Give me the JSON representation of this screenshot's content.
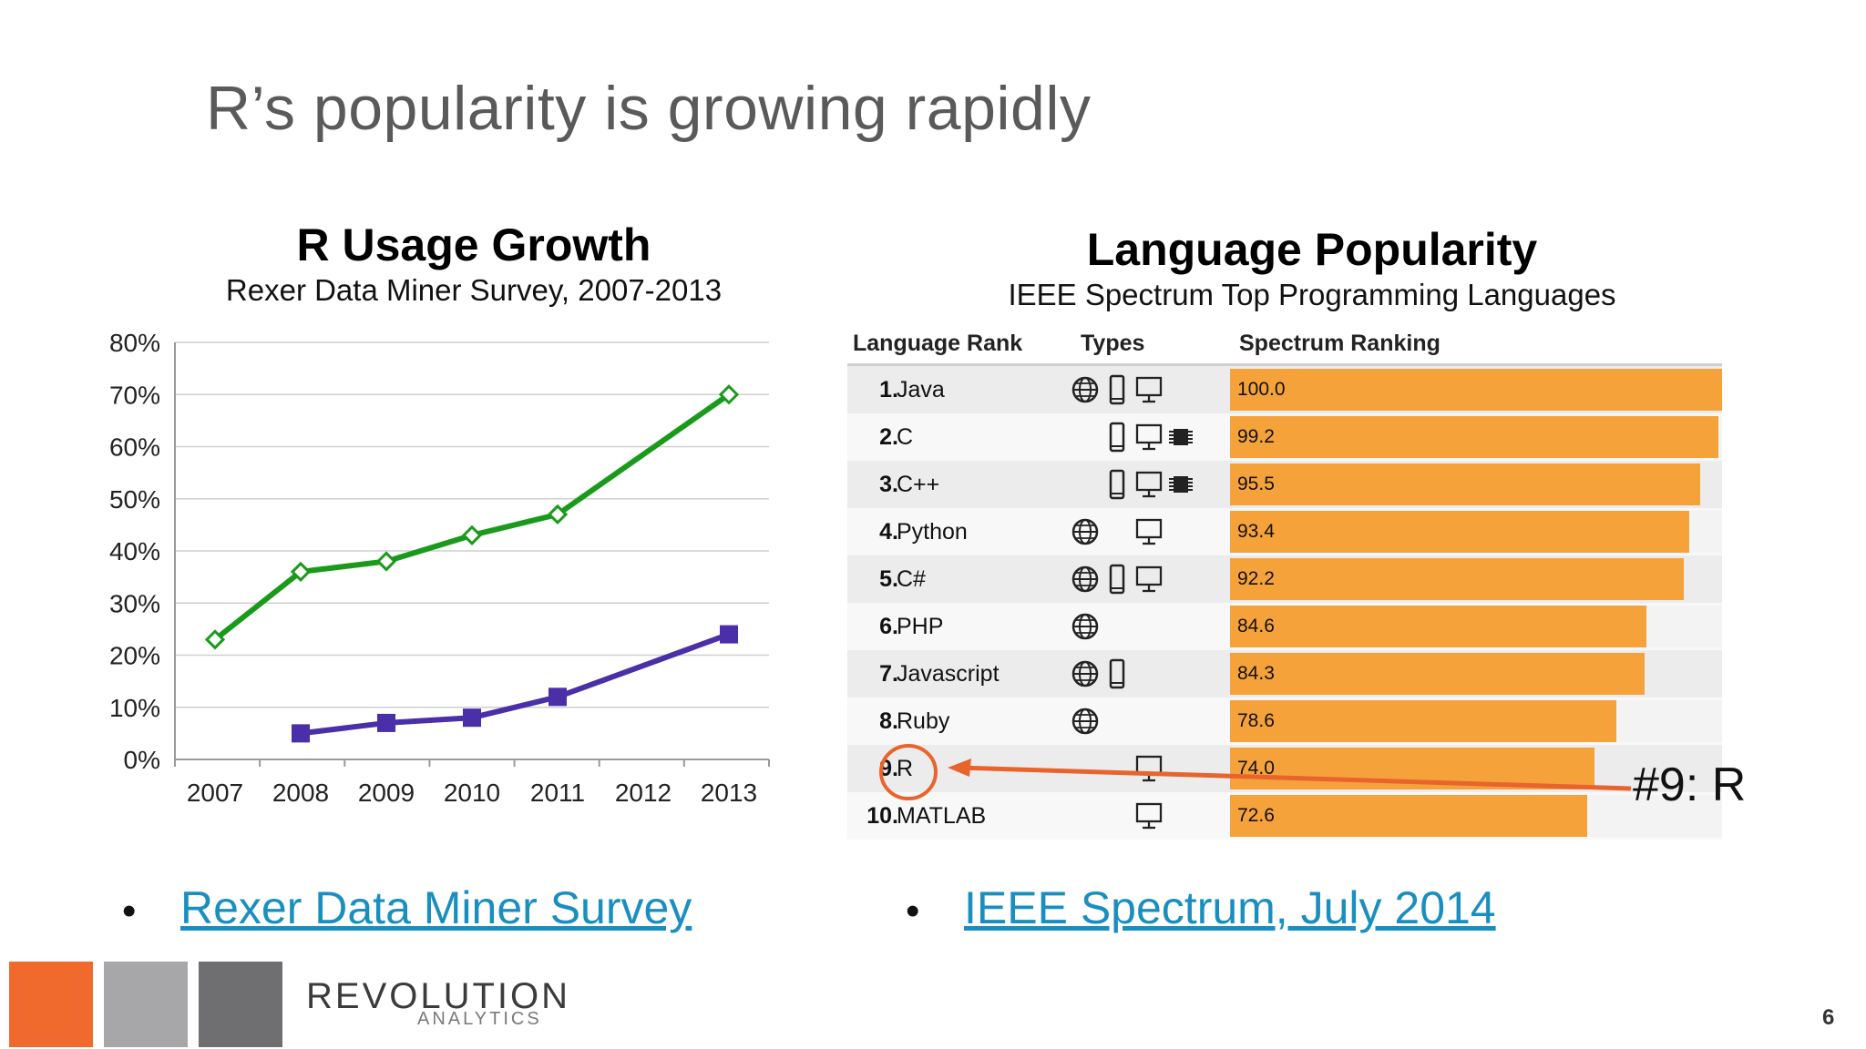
{
  "slide": {
    "title": "R’s popularity is growing rapidly",
    "page_number": "6"
  },
  "left_panel": {
    "title": "R Usage Growth",
    "subtitle": "Rexer Data Miner Survey, 2007-2013",
    "link_bullet": "•",
    "link_text": "Rexer Data Miner Survey"
  },
  "right_panel": {
    "title": "Language Popularity",
    "subtitle": "IEEE Spectrum Top Programming Languages",
    "link_bullet": "•",
    "link_text": "IEEE Spectrum, July 2014",
    "annotation": "#9: R",
    "colors": {
      "bar": "#f6a23a",
      "annotation": "#e8642c"
    }
  },
  "chart_data": [
    {
      "type": "line",
      "title": "R Usage Growth",
      "subtitle": "Rexer Data Miner Survey, 2007-2013",
      "x": [
        "2007",
        "2008",
        "2009",
        "2010",
        "2011",
        "2012",
        "2013"
      ],
      "ylim": [
        0,
        80
      ],
      "yticks": [
        "0%",
        "10%",
        "20%",
        "30%",
        "40%",
        "50%",
        "60%",
        "70%",
        "80%"
      ],
      "grid": true,
      "series": [
        {
          "color": "#1a9a1a",
          "marker": "open-diamond",
          "points": [
            [
              2007,
              23
            ],
            [
              2008,
              36
            ],
            [
              2009,
              38
            ],
            [
              2010,
              43
            ],
            [
              2011,
              47
            ],
            [
              2013,
              70
            ]
          ]
        },
        {
          "color": "#4a2fa8",
          "marker": "filled-square",
          "points": [
            [
              2008,
              5
            ],
            [
              2009,
              7
            ],
            [
              2010,
              8
            ],
            [
              2011,
              12
            ],
            [
              2013,
              24
            ]
          ]
        }
      ]
    },
    {
      "type": "table",
      "title": "Language Popularity",
      "subtitle": "IEEE Spectrum Top Programming Languages",
      "columns": [
        "Language Rank",
        "Types",
        "Spectrum Ranking"
      ],
      "xlim": [
        0,
        100
      ],
      "rows": [
        {
          "rank": "1.",
          "name": "Java",
          "types": [
            "web",
            "mobile",
            "desktop"
          ],
          "value": "100.0"
        },
        {
          "rank": "2.",
          "name": "C",
          "types": [
            "mobile",
            "desktop",
            "embedded"
          ],
          "value": "99.2"
        },
        {
          "rank": "3.",
          "name": "C++",
          "types": [
            "mobile",
            "desktop",
            "embedded"
          ],
          "value": "95.5"
        },
        {
          "rank": "4.",
          "name": "Python",
          "types": [
            "web",
            "desktop"
          ],
          "value": "93.4"
        },
        {
          "rank": "5.",
          "name": "C#",
          "types": [
            "web",
            "mobile",
            "desktop"
          ],
          "value": "92.2"
        },
        {
          "rank": "6.",
          "name": "PHP",
          "types": [
            "web"
          ],
          "value": "84.6"
        },
        {
          "rank": "7.",
          "name": "Javascript",
          "types": [
            "web",
            "mobile"
          ],
          "value": "84.3"
        },
        {
          "rank": "8.",
          "name": "Ruby",
          "types": [
            "web"
          ],
          "value": "78.6"
        },
        {
          "rank": "9.",
          "name": "R",
          "types": [
            "desktop"
          ],
          "value": "74.0"
        },
        {
          "rank": "10.",
          "name": "MATLAB",
          "types": [
            "desktop"
          ],
          "value": "72.6"
        }
      ]
    }
  ],
  "footer": {
    "squares": [
      "#f06a2e",
      "#a7a6a8",
      "#6f6e70"
    ],
    "logo_text": "REVOLUTION",
    "logo_sub": "ANALYTICS"
  }
}
